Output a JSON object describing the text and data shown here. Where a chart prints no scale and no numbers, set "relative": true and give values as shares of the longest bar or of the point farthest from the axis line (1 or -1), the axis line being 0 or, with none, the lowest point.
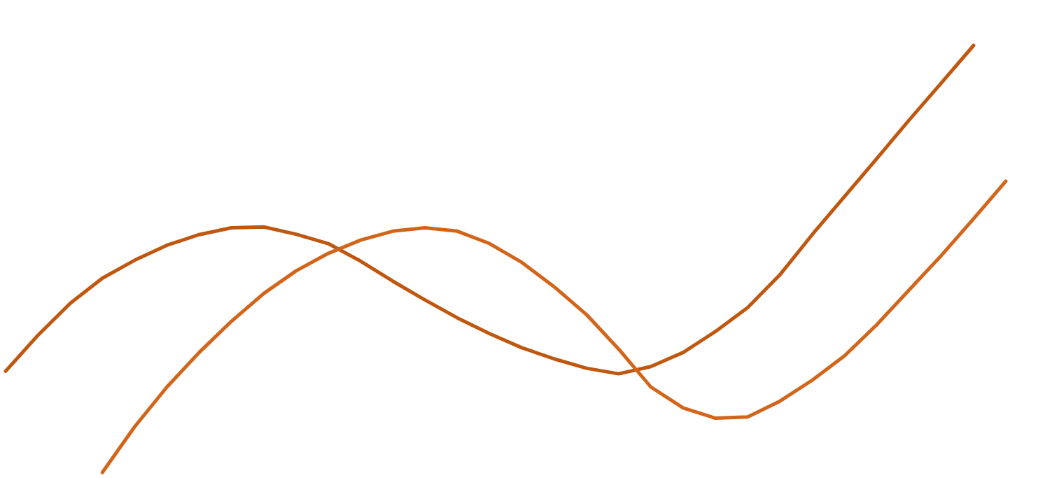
{
  "chart_data": {
    "type": "line",
    "relative": true,
    "marker": "none",
    "line_style": "solid",
    "categories": [
      null,
      null,
      null,
      null,
      null,
      null,
      null,
      null,
      null,
      null,
      null,
      null,
      null,
      null,
      null,
      null,
      null,
      null,
      null,
      null,
      null,
      null,
      null,
      null,
      null,
      null,
      null,
      null,
      null,
      null,
      null,
      null
    ],
    "series": [
      {
        "color": "#c0570f",
        "values": [
          0.237,
          0.321,
          0.396,
          0.455,
          0.497,
          0.532,
          0.557,
          0.573,
          0.575,
          0.558,
          0.536,
          0.495,
          0.448,
          0.404,
          0.362,
          0.325,
          0.292,
          0.266,
          0.244,
          0.231,
          0.248,
          0.281,
          0.33,
          0.386,
          0.463,
          0.557,
          0.646,
          0.735,
          0.825,
          0.912,
          1,
          null
        ]
      },
      {
        "color": "#d2651a",
        "values": [
          null,
          null,
          null,
          0,
          0.107,
          0.2,
          0.281,
          0.354,
          0.419,
          0.472,
          0.513,
          0.544,
          0.565,
          0.573,
          0.565,
          0.536,
          0.492,
          0.435,
          0.37,
          0.289,
          0.2,
          0.151,
          0.127,
          0.13,
          0.167,
          0.216,
          0.273,
          0.346,
          0.427,
          0.508,
          0.594,
          0.682
        ]
      }
    ]
  }
}
